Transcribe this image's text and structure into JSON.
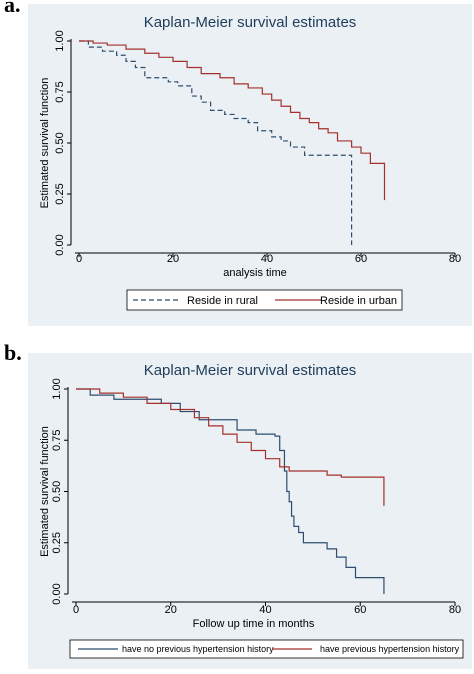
{
  "panels": [
    {
      "label": "a."
    },
    {
      "label": "b."
    }
  ],
  "colors": {
    "panel_bg": "#eaf0f4",
    "axis": "#000000",
    "title": "#1f3c5a",
    "series_blue": "#2e4d6e",
    "series_red": "#a5302c"
  },
  "chart_data": [
    {
      "type": "line",
      "step": true,
      "title": "Kaplan-Meier survival estimates",
      "xlabel": "analysis time",
      "ylabel": "Estimated survival function",
      "xlim": [
        0,
        80
      ],
      "ylim": [
        0,
        1
      ],
      "xticks": [
        "0",
        "20",
        "40",
        "60",
        "80"
      ],
      "yticks": [
        "0.00",
        "0.25",
        "0.50",
        "0.75",
        "1.00"
      ],
      "legend_position": "bottom",
      "grid": false,
      "series": [
        {
          "name": "Reside in rural",
          "style": "dashed",
          "color": "#2e4d6e",
          "x": [
            0,
            2,
            5,
            8,
            10,
            12,
            14,
            19,
            21,
            24,
            26,
            28,
            31,
            33,
            36,
            38,
            41,
            43,
            45,
            48,
            58,
            58
          ],
          "y": [
            1.0,
            0.97,
            0.95,
            0.93,
            0.9,
            0.87,
            0.82,
            0.8,
            0.78,
            0.73,
            0.7,
            0.66,
            0.64,
            0.62,
            0.6,
            0.56,
            0.53,
            0.51,
            0.48,
            0.44,
            0.44,
            0.0
          ]
        },
        {
          "name": "Reside in urban",
          "style": "solid",
          "color": "#a5302c",
          "x": [
            0,
            3,
            6,
            10,
            14,
            17,
            20,
            23,
            26,
            30,
            33,
            36,
            39,
            41,
            43,
            45,
            47,
            49,
            51,
            53,
            55,
            58,
            60,
            62,
            65,
            65
          ],
          "y": [
            1.0,
            0.99,
            0.98,
            0.96,
            0.94,
            0.92,
            0.9,
            0.87,
            0.84,
            0.82,
            0.79,
            0.77,
            0.74,
            0.71,
            0.68,
            0.65,
            0.62,
            0.6,
            0.57,
            0.55,
            0.51,
            0.48,
            0.45,
            0.4,
            0.28,
            0.22
          ]
        }
      ]
    },
    {
      "type": "line",
      "step": true,
      "title": "Kaplan-Meier survival estimates",
      "xlabel": "Follow up time in months",
      "ylabel": "Estimated survival function",
      "xlim": [
        0,
        80
      ],
      "ylim": [
        0,
        1
      ],
      "xticks": [
        "0",
        "20",
        "40",
        "60",
        "80"
      ],
      "yticks": [
        "0.00",
        "0.25",
        "0.50",
        "0.75",
        "1.00"
      ],
      "legend_position": "bottom",
      "grid": false,
      "series": [
        {
          "name": "have no previous hypertension history",
          "style": "solid",
          "color": "#2e4d6e",
          "x": [
            0,
            3,
            8,
            12,
            18,
            22,
            26,
            30,
            34,
            38,
            42,
            43,
            44,
            44.5,
            45,
            45.5,
            46,
            47,
            48,
            49,
            50,
            53,
            55,
            57,
            59,
            61,
            65,
            65
          ],
          "y": [
            1.0,
            0.97,
            0.95,
            0.95,
            0.93,
            0.89,
            0.85,
            0.85,
            0.8,
            0.78,
            0.77,
            0.7,
            0.6,
            0.5,
            0.45,
            0.38,
            0.33,
            0.3,
            0.25,
            0.25,
            0.25,
            0.22,
            0.18,
            0.13,
            0.08,
            0.08,
            0.08,
            0.0
          ]
        },
        {
          "name": "have previous hypertension history",
          "style": "solid",
          "color": "#a5302c",
          "x": [
            0,
            5,
            10,
            15,
            20,
            25,
            28,
            31,
            34,
            37,
            40,
            43,
            45,
            50,
            53,
            56,
            60,
            64,
            65,
            65
          ],
          "y": [
            1.0,
            0.98,
            0.96,
            0.93,
            0.9,
            0.86,
            0.82,
            0.78,
            0.74,
            0.7,
            0.66,
            0.62,
            0.6,
            0.6,
            0.58,
            0.57,
            0.57,
            0.57,
            0.57,
            0.43
          ]
        }
      ]
    }
  ]
}
